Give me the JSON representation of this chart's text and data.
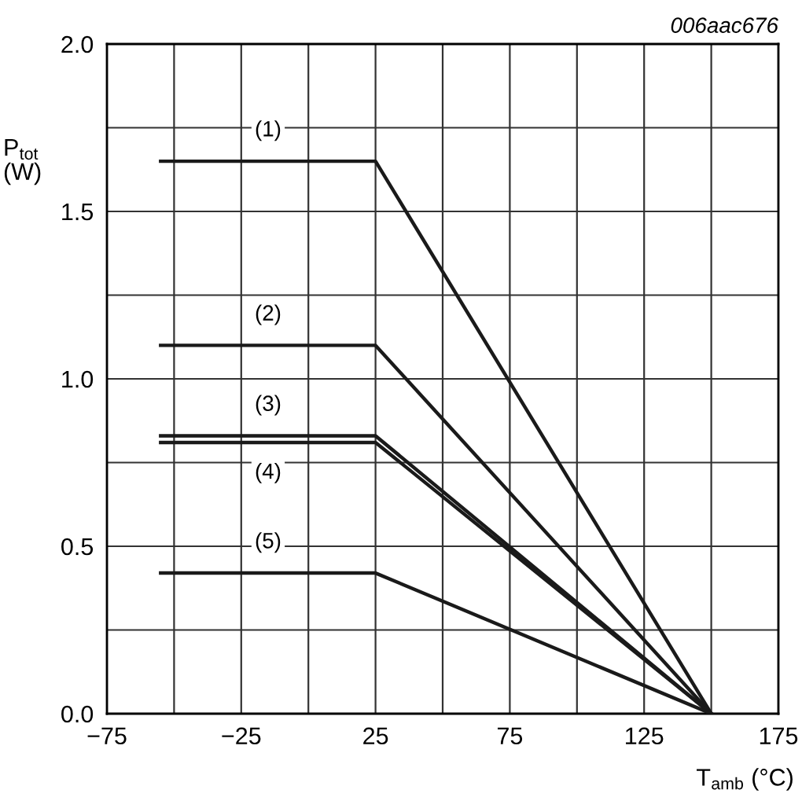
{
  "chart_data": {
    "type": "line",
    "xlabel": "T$_{amb}$ (°C)",
    "ylabel": "P$_{tot}$\n(W)",
    "x": [
      -55,
      25,
      150
    ],
    "series": [
      {
        "name": "(1)",
        "color": "#1a1a1a",
        "values": [
          1.65,
          1.65,
          0
        ]
      },
      {
        "name": "(2)",
        "color": "#1a1a1a",
        "values": [
          1.1,
          1.1,
          0
        ]
      },
      {
        "name": "(3)",
        "color": "#1a1a1a",
        "values": [
          0.83,
          0.83,
          0
        ]
      },
      {
        "name": "(4)",
        "color": "#1a1a1a",
        "values": [
          0.81,
          0.81,
          0
        ]
      },
      {
        "name": "(5)",
        "color": "#1a1a1a",
        "values": [
          0.42,
          0.42,
          0
        ]
      }
    ],
    "annotations": [
      "006aac676"
    ],
    "xlim": [
      -75,
      175
    ],
    "xticks": [
      -75,
      {
        "value": -50,
        "label": null
      },
      -25,
      {
        "value": 0,
        "label": null
      },
      25,
      {
        "value": 50,
        "label": null
      },
      75,
      {
        "value": 100,
        "label": null
      },
      125,
      {
        "value": 150,
        "label": null
      },
      175
    ],
    "ylim": [
      0,
      2.0
    ],
    "yticks": [
      {
        "value": 0,
        "label": "0.0"
      },
      {
        "value": 0.25,
        "label": null
      },
      0.5,
      {
        "value": 0.75,
        "label": null
      },
      {
        "value": 1.0,
        "label": "1.0"
      },
      {
        "value": 1.25,
        "label": null
      },
      1.5,
      {
        "value": 1.75,
        "label": null
      },
      {
        "value": 2.0,
        "label": "2.0"
      }
    ],
    "grid": true,
    "line_style": "solid",
    "marker": "none",
    "legend": false
  }
}
